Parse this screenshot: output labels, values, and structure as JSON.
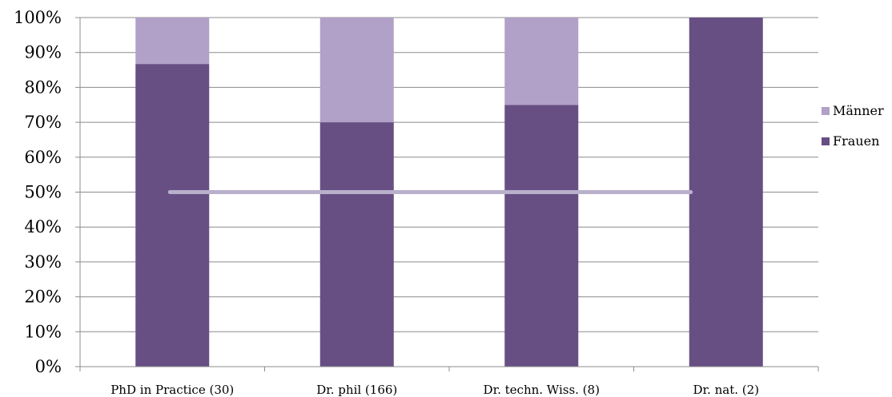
{
  "chart_data": {
    "type": "bar",
    "stacked": true,
    "percent": true,
    "categories": [
      "PhD in Practice (30)",
      "Dr. phil  (166)",
      "Dr. techn. Wiss. (8)",
      "Dr. nat. (2)"
    ],
    "series": [
      {
        "name": "Frauen",
        "values": [
          86.7,
          70.0,
          75.0,
          100.0
        ],
        "color": "#674f84"
      },
      {
        "name": "Männer",
        "values": [
          13.3,
          30.0,
          25.0,
          0.0
        ],
        "color": "#b1a0c7"
      }
    ],
    "ylim": [
      0,
      100
    ],
    "yticks": [
      "0%",
      "10%",
      "20%",
      "30%",
      "40%",
      "50%",
      "60%",
      "70%",
      "80%",
      "90%",
      "100%"
    ],
    "reference_line": {
      "value": 50,
      "color": "#b9b0cb"
    },
    "grid": true,
    "legend": {
      "position": "right",
      "entries": [
        "Männer",
        "Frauen"
      ]
    },
    "title": "",
    "xlabel": "",
    "ylabel": ""
  }
}
